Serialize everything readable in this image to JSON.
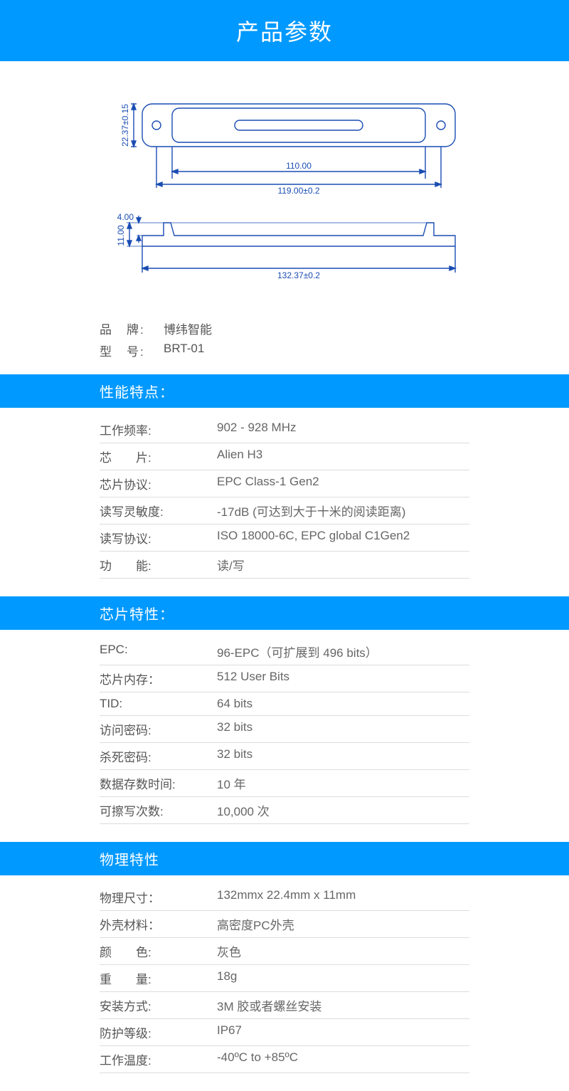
{
  "header": {
    "title": "产品参数"
  },
  "diagram": {
    "stroke": "#1a4db3",
    "dims": {
      "height_tol": "22.37±0.15",
      "inner_width": "110.00",
      "width_tol": "119.00±0.2",
      "side_h1": "4.00",
      "side_h2": "11.00",
      "total_len": "132.37±0.2"
    }
  },
  "basic": {
    "brand_label": "品　牌:",
    "brand_value": "博纬智能",
    "model_label": "型　号:",
    "model_value": "BRT-01"
  },
  "sections": [
    {
      "title": "性能特点：",
      "rows": [
        {
          "label": "工作频率:",
          "value": "902 - 928 MHz"
        },
        {
          "label": "芯　　片:",
          "value": "Alien H3"
        },
        {
          "label": "芯片协议:",
          "value": "EPC Class-1 Gen2"
        },
        {
          "label": "读写灵敏度:",
          "value": "-17dB (可达到大于十米的阅读距离)"
        },
        {
          "label": "读写协议:",
          "value": "ISO 18000-6C, EPC global C1Gen2"
        },
        {
          "label": "功　　能:",
          "value": "读/写"
        }
      ]
    },
    {
      "title": "芯片特性：",
      "rows": [
        {
          "label": "EPC:",
          "value": "96-EPC（可扩展到 496 bits）"
        },
        {
          "label": "芯片内存：",
          "value": "512 User Bits"
        },
        {
          "label": "TID:",
          "value": "64 bits"
        },
        {
          "label": "访问密码:",
          "value": "32 bits"
        },
        {
          "label": "杀死密码:",
          "value": "32 bits"
        },
        {
          "label": "数据存数时间:",
          "value": "10 年"
        },
        {
          "label": "可擦写次数:",
          "value": "10,000 次"
        }
      ]
    },
    {
      "title": "物理特性",
      "rows": [
        {
          "label": "物理尺寸：",
          "value": "132mmx 22.4mm x 11mm"
        },
        {
          "label": "外壳材料：",
          "value": "高密度PC外壳"
        },
        {
          "label": "颜　　色:",
          "value": "灰色"
        },
        {
          "label": "重　　量:",
          "value": "18g"
        },
        {
          "label": "安装方式:",
          "value": "3M 胶或者螺丝安装"
        },
        {
          "label": "防护等级:",
          "value": "IP67"
        },
        {
          "label": "工作温度:",
          "value": "-40ºC to +85ºC"
        }
      ]
    }
  ],
  "colors": {
    "accent": "#0099ff",
    "text": "#555555",
    "border": "#dddddd"
  }
}
